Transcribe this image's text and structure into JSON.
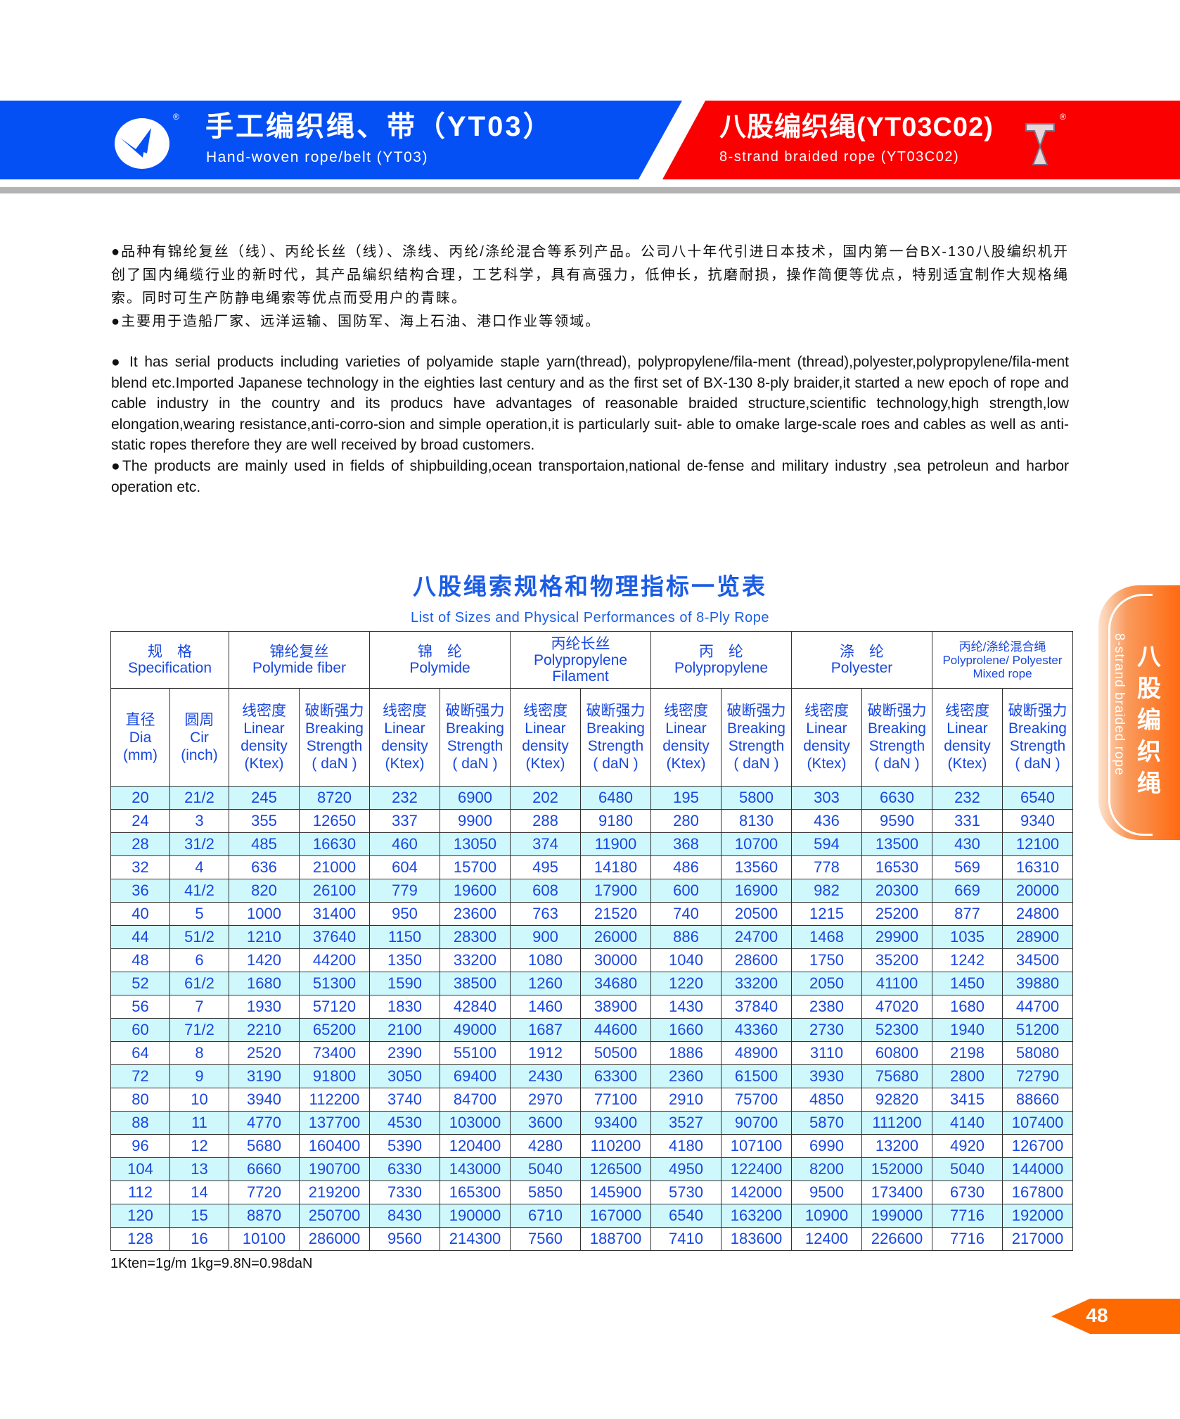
{
  "header": {
    "left_title_cn": "手工编织绳、带（YT03）",
    "left_title_en": "Hand-woven rope/belt (YT03)",
    "right_title_cn": "八股编织绳(YT03C02)",
    "right_title_en": "8-strand braided rope (YT03C02)",
    "registered_mark": "®",
    "colors": {
      "left_band": "#0550f5",
      "right_band": "#fb0000"
    }
  },
  "intro_cn": [
    "●品种有锦纶复丝（线）、丙纶长丝（线）、涤线、丙纶/涤纶混合等系列产品。公司八十年代引进日本技术，国内第一台BX-130八股编织机开创了国内绳缆行业的新时代，其产品编织结构合理，工艺科学，具有高强力，低伸长，抗磨耐损，操作简便等优点，特别适宜制作大规格绳索。同时可生产防静电绳索等优点而受用户的青睐。",
    "●主要用于造船厂家、远洋运输、国防军、海上石油、港口作业等领域。"
  ],
  "intro_en": [
    "● It has serial products including varieties of polyamide staple yarn(thread), polypropylene/fila-ment (thread),polyester,polypropylene/fila-ment blend etc.Imported Japanese technology in the eighties last century and as the first set of BX-130 8-ply braider,it started a new epoch of rope and cable industry in the country and its producs have advantages of reasonable braided structure,scientific technology,high strength,low elongation,wearing resistance,anti-corro-sion and simple operation,it is particularly suit- able to omake large-scale roes and cables as well as anti-static ropes therefore they are well received by broad customers.",
    "●The products are mainly used in fields of shipbuilding,ocean transportaion,national de-fense and military industry ,sea petroleun and harbor operation etc."
  ],
  "table": {
    "title_cn": "八股绳索规格和物理指标一览表",
    "title_en": "List of Sizes and Physical Performances of 8-Ply Rope",
    "groups": [
      {
        "cn": "规　格",
        "en": "Specification"
      },
      {
        "cn": "锦纶复丝",
        "en": "Polymide fiber"
      },
      {
        "cn": "锦　纶",
        "en": "Polymide"
      },
      {
        "cn": "丙纶长丝",
        "en": "Polypropylene Filament"
      },
      {
        "cn": "丙　纶",
        "en": "Polypropylene"
      },
      {
        "cn": "涤　纶",
        "en": "Polyester"
      },
      {
        "cn": "丙纶/涤纶混合绳",
        "en": "Polyprolene/ Polyester Mixed rope"
      }
    ],
    "sub_headers": {
      "dia": {
        "cn": "直径",
        "en": "Dia",
        "unit": "(mm)"
      },
      "cir": {
        "cn": "圆周",
        "en": "Cir",
        "unit": "(inch)"
      },
      "linear": {
        "cn": "线密度",
        "en1": "Linear",
        "en2": "density",
        "unit": "(Ktex)"
      },
      "breaking": {
        "cn": "破断强力",
        "en1": "Breaking",
        "en2": "Strength",
        "unit": "( daN )"
      }
    },
    "rows": [
      [
        "20",
        "21/2",
        "245",
        "8720",
        "232",
        "6900",
        "202",
        "6480",
        "195",
        "5800",
        "303",
        "6630",
        "232",
        "6540"
      ],
      [
        "24",
        "3",
        "355",
        "12650",
        "337",
        "9900",
        "288",
        "9180",
        "280",
        "8130",
        "436",
        "9590",
        "331",
        "9340"
      ],
      [
        "28",
        "31/2",
        "485",
        "16630",
        "460",
        "13050",
        "374",
        "11900",
        "368",
        "10700",
        "594",
        "13500",
        "430",
        "12100"
      ],
      [
        "32",
        "4",
        "636",
        "21000",
        "604",
        "15700",
        "495",
        "14180",
        "486",
        "13560",
        "778",
        "16530",
        "569",
        "16310"
      ],
      [
        "36",
        "41/2",
        "820",
        "26100",
        "779",
        "19600",
        "608",
        "17900",
        "600",
        "16900",
        "982",
        "20300",
        "669",
        "20000"
      ],
      [
        "40",
        "5",
        "1000",
        "31400",
        "950",
        "23600",
        "763",
        "21520",
        "740",
        "20500",
        "1215",
        "25200",
        "877",
        "24800"
      ],
      [
        "44",
        "51/2",
        "1210",
        "37640",
        "1150",
        "28300",
        "900",
        "26000",
        "886",
        "24700",
        "1468",
        "29900",
        "1035",
        "28900"
      ],
      [
        "48",
        "6",
        "1420",
        "44200",
        "1350",
        "33200",
        "1080",
        "30000",
        "1040",
        "28600",
        "1750",
        "35200",
        "1242",
        "34500"
      ],
      [
        "52",
        "61/2",
        "1680",
        "51300",
        "1590",
        "38500",
        "1260",
        "34680",
        "1220",
        "33200",
        "2050",
        "41100",
        "1450",
        "39880"
      ],
      [
        "56",
        "7",
        "1930",
        "57120",
        "1830",
        "42840",
        "1460",
        "38900",
        "1430",
        "37840",
        "2380",
        "47020",
        "1680",
        "44700"
      ],
      [
        "60",
        "71/2",
        "2210",
        "65200",
        "2100",
        "49000",
        "1687",
        "44600",
        "1660",
        "43360",
        "2730",
        "52300",
        "1940",
        "51200"
      ],
      [
        "64",
        "8",
        "2520",
        "73400",
        "2390",
        "55100",
        "1912",
        "50500",
        "1886",
        "48900",
        "3110",
        "60800",
        "2198",
        "58080"
      ],
      [
        "72",
        "9",
        "3190",
        "91800",
        "3050",
        "69400",
        "2430",
        "63300",
        "2360",
        "61500",
        "3930",
        "75680",
        "2800",
        "72790"
      ],
      [
        "80",
        "10",
        "3940",
        "112200",
        "3740",
        "84700",
        "2970",
        "77100",
        "2910",
        "75700",
        "4850",
        "92820",
        "3415",
        "88660"
      ],
      [
        "88",
        "11",
        "4770",
        "137700",
        "4530",
        "103000",
        "3600",
        "93400",
        "3527",
        "90700",
        "5870",
        "111200",
        "4140",
        "107400"
      ],
      [
        "96",
        "12",
        "5680",
        "160400",
        "5390",
        "120400",
        "4280",
        "110200",
        "4180",
        "107100",
        "6990",
        "13200",
        "4920",
        "126700"
      ],
      [
        "104",
        "13",
        "6660",
        "190700",
        "6330",
        "143000",
        "5040",
        "126500",
        "4950",
        "122400",
        "8200",
        "152000",
        "5040",
        "144000"
      ],
      [
        "112",
        "14",
        "7720",
        "219200",
        "7330",
        "165300",
        "5850",
        "145900",
        "5730",
        "142000",
        "9500",
        "173400",
        "6730",
        "167800"
      ],
      [
        "120",
        "15",
        "8870",
        "250700",
        "8430",
        "190000",
        "6710",
        "167000",
        "6540",
        "163200",
        "10900",
        "199000",
        "7716",
        "192000"
      ],
      [
        "128",
        "16",
        "10100",
        "286000",
        "9560",
        "214300",
        "7560",
        "188700",
        "7410",
        "183600",
        "12400",
        "226600",
        "7716",
        "217000"
      ]
    ],
    "footnote": "1Kten=1g/m  1kg=9.8N=0.98daN",
    "colors": {
      "text": "#1747e0",
      "stripe": "#cff8fc"
    }
  },
  "side_tab": {
    "cn": "八股编织绳",
    "en": "8-strand braided rope",
    "color": "#ff6a10"
  },
  "page_number": "48"
}
